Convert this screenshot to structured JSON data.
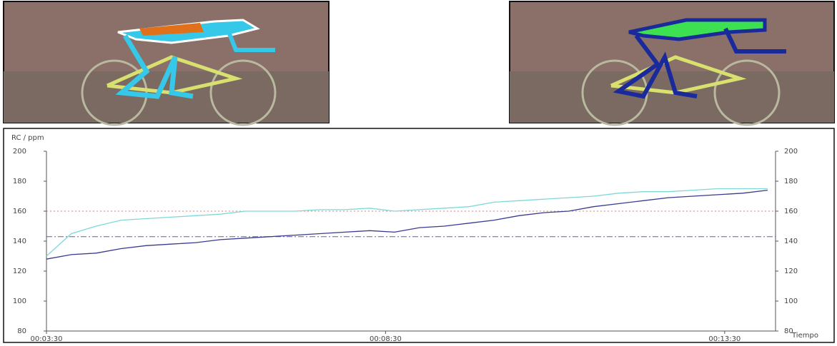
{
  "chart_data": {
    "type": "line",
    "y_label": "RC / ppm",
    "x_label": "Tiempo",
    "x": [
      210,
      232,
      254,
      276,
      298,
      320,
      342,
      364,
      386,
      408,
      430,
      452,
      474,
      496,
      518,
      540,
      562,
      584,
      606,
      628,
      650,
      672,
      694,
      716,
      738,
      760,
      782,
      804,
      826,
      848
    ],
    "xlim": [
      210,
      855
    ],
    "xticks": [
      {
        "value": 210,
        "label": "00:03:30"
      },
      {
        "value": 510,
        "label": "00:08:30"
      },
      {
        "value": 810,
        "label": "00:13:30"
      }
    ],
    "ylim": [
      80,
      200
    ],
    "yticks": [
      80,
      100,
      120,
      140,
      160,
      180,
      200
    ],
    "y2lim": [
      80,
      200
    ],
    "y2ticks": [
      80,
      100,
      120,
      140,
      160,
      180,
      200
    ],
    "reference_lines": [
      {
        "value": 160,
        "color": "#d08080",
        "dash": "2 3"
      },
      {
        "value": 143,
        "color": "#6060a0",
        "dash": "8 3 2 3"
      }
    ],
    "series": [
      {
        "color": "#7fd8d8",
        "values": [
          130,
          145,
          150,
          154,
          155,
          156,
          157,
          158,
          160,
          160,
          160,
          161,
          161,
          162,
          160,
          161,
          162,
          163,
          166,
          167,
          168,
          169,
          170,
          172,
          173,
          173,
          174,
          175,
          175,
          175
        ]
      },
      {
        "color": "#3a3a90",
        "values": [
          128,
          131,
          132,
          135,
          137,
          138,
          139,
          141,
          142,
          143,
          144,
          145,
          146,
          147,
          146,
          149,
          150,
          152,
          154,
          157,
          159,
          160,
          163,
          165,
          167,
          169,
          170,
          171,
          172,
          174
        ]
      }
    ]
  }
}
